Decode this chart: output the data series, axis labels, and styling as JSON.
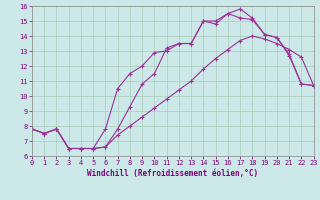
{
  "xlabel": "Windchill (Refroidissement éolien,°C)",
  "background_color": "#cce8e8",
  "line_color": "#993399",
  "xlim": [
    0,
    23
  ],
  "ylim": [
    6,
    16
  ],
  "xticks": [
    0,
    1,
    2,
    3,
    4,
    5,
    6,
    7,
    8,
    9,
    10,
    11,
    12,
    13,
    14,
    15,
    16,
    17,
    18,
    19,
    20,
    21,
    22,
    23
  ],
  "yticks": [
    6,
    7,
    8,
    9,
    10,
    11,
    12,
    13,
    14,
    15,
    16
  ],
  "line1_x": [
    0,
    1,
    2,
    3,
    4,
    5,
    6,
    7,
    8,
    9,
    10,
    11,
    12,
    13,
    14,
    15,
    16,
    17,
    18,
    19,
    20,
    21,
    22,
    23
  ],
  "line1_y": [
    7.8,
    7.5,
    7.8,
    6.5,
    6.5,
    6.5,
    6.6,
    7.4,
    8.0,
    8.6,
    9.2,
    9.8,
    10.4,
    11.0,
    11.8,
    12.5,
    13.1,
    13.7,
    14.0,
    13.8,
    13.5,
    13.1,
    12.6,
    10.7
  ],
  "line2_x": [
    0,
    1,
    2,
    3,
    4,
    5,
    6,
    7,
    8,
    9,
    10,
    11,
    12,
    13,
    14,
    15,
    16,
    17,
    18,
    19,
    20,
    21,
    22,
    23
  ],
  "line2_y": [
    7.8,
    7.5,
    7.8,
    6.5,
    6.5,
    6.5,
    6.6,
    7.8,
    9.3,
    10.8,
    11.5,
    13.2,
    13.5,
    13.5,
    15.0,
    15.0,
    15.5,
    15.8,
    15.2,
    14.1,
    13.9,
    12.8,
    10.8,
    10.7
  ],
  "line3_x": [
    0,
    1,
    2,
    3,
    4,
    5,
    6,
    7,
    8,
    9,
    10,
    11,
    12,
    13,
    14,
    15,
    16,
    17,
    18,
    19,
    20,
    21,
    22,
    23
  ],
  "line3_y": [
    7.8,
    7.5,
    7.8,
    6.5,
    6.5,
    6.5,
    7.8,
    10.5,
    11.5,
    12.0,
    12.9,
    13.0,
    13.5,
    13.5,
    15.0,
    14.8,
    15.5,
    15.2,
    15.1,
    14.1,
    13.9,
    12.7,
    10.8,
    10.7
  ]
}
